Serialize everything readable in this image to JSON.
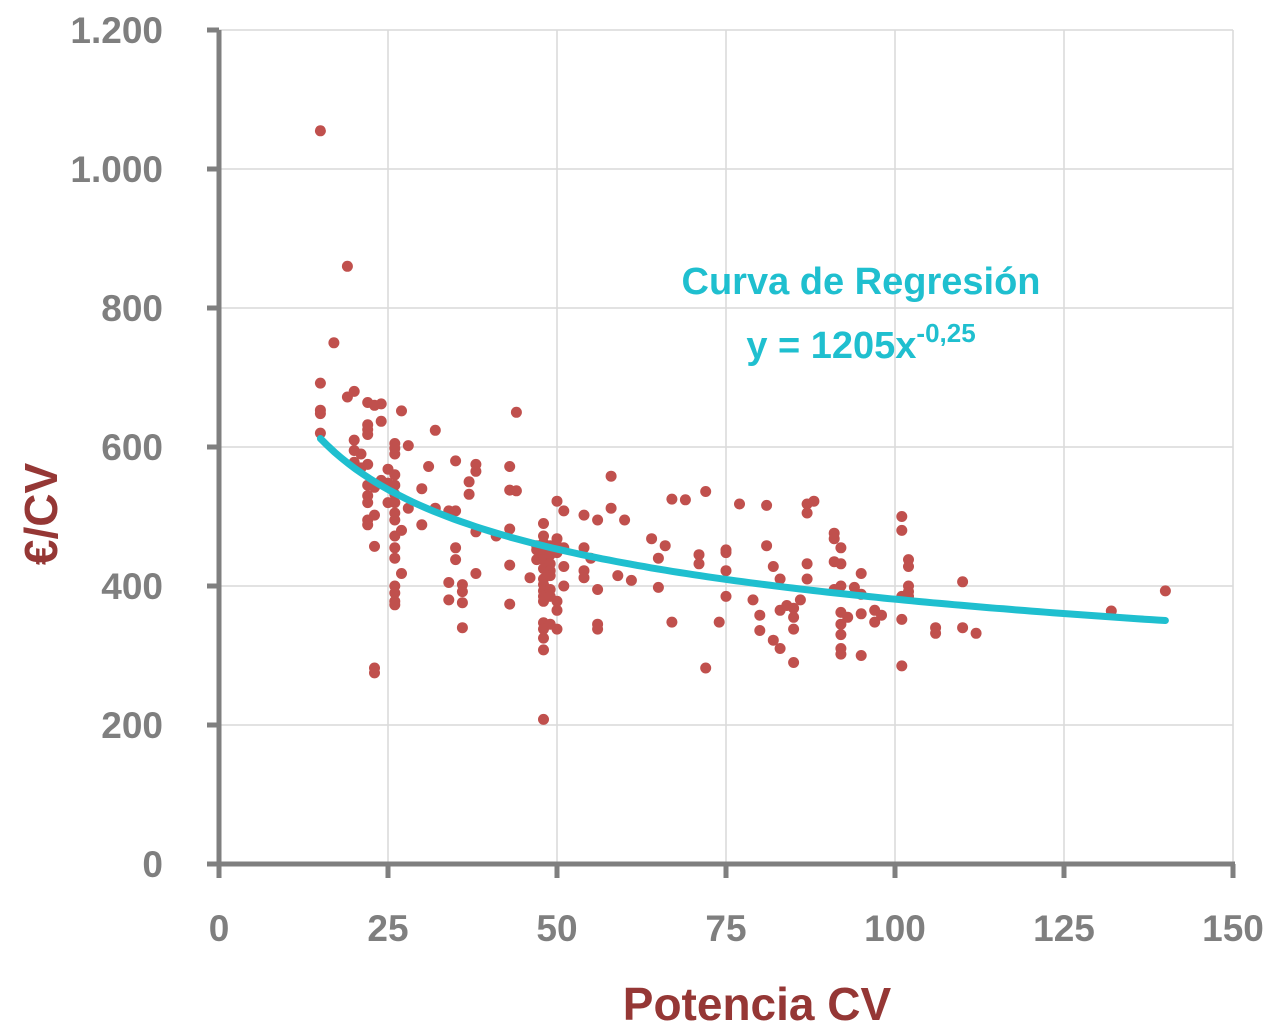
{
  "chart_data": {
    "type": "scatter",
    "xlabel": "Potencia CV",
    "ylabel": "€/CV",
    "xlim": [
      0,
      150
    ],
    "ylim": [
      0,
      1200
    ],
    "x_ticks": [
      0,
      25,
      50,
      75,
      100,
      125,
      150
    ],
    "y_ticks": [
      0,
      200,
      400,
      600,
      800,
      1000,
      1200
    ],
    "x_tick_labels": [
      "0",
      "25",
      "50",
      "75",
      "100",
      "125",
      "150"
    ],
    "y_tick_labels": [
      "0",
      "200",
      "400",
      "600",
      "800",
      "1.000",
      "1.200"
    ],
    "grid": true,
    "colors": {
      "points": "#c0504d",
      "curve": "#1fbfcf",
      "axis_title": "#953735",
      "tick": "#7f7f7f",
      "grid": "#d9d9d9",
      "axis": "#7f7f7f"
    },
    "annotation": {
      "line1": "Curva de Regresión",
      "eq_main": "y = 1205x",
      "eq_exp": "-0,25"
    },
    "regression": {
      "a": 1205,
      "b": -0.25,
      "x_range": [
        15,
        140
      ]
    },
    "points": [
      [
        15,
        1055
      ],
      [
        15,
        692
      ],
      [
        15,
        653
      ],
      [
        15,
        648
      ],
      [
        15,
        620
      ],
      [
        17,
        750
      ],
      [
        19,
        860
      ],
      [
        19,
        672
      ],
      [
        20,
        680
      ],
      [
        20,
        610
      ],
      [
        20,
        595
      ],
      [
        20,
        578
      ],
      [
        21,
        590
      ],
      [
        21,
        570
      ],
      [
        22,
        664
      ],
      [
        22,
        632
      ],
      [
        22,
        625
      ],
      [
        22,
        618
      ],
      [
        22,
        575
      ],
      [
        22,
        545
      ],
      [
        22,
        530
      ],
      [
        22,
        520
      ],
      [
        22,
        495
      ],
      [
        22,
        488
      ],
      [
        23,
        660
      ],
      [
        23,
        542
      ],
      [
        23,
        502
      ],
      [
        23,
        457
      ],
      [
        23,
        282
      ],
      [
        23,
        275
      ],
      [
        24,
        662
      ],
      [
        24,
        637
      ],
      [
        24,
        552
      ],
      [
        25,
        568
      ],
      [
        25,
        548
      ],
      [
        25,
        520
      ],
      [
        26,
        605
      ],
      [
        26,
        598
      ],
      [
        26,
        590
      ],
      [
        26,
        560
      ],
      [
        26,
        545
      ],
      [
        26,
        532
      ],
      [
        26,
        520
      ],
      [
        26,
        505
      ],
      [
        26,
        495
      ],
      [
        26,
        472
      ],
      [
        26,
        455
      ],
      [
        26,
        440
      ],
      [
        26,
        400
      ],
      [
        26,
        390
      ],
      [
        26,
        378
      ],
      [
        26,
        373
      ],
      [
        27,
        652
      ],
      [
        27,
        480
      ],
      [
        27,
        418
      ],
      [
        28,
        602
      ],
      [
        28,
        512
      ],
      [
        30,
        540
      ],
      [
        30,
        488
      ],
      [
        31,
        572
      ],
      [
        32,
        624
      ],
      [
        32,
        512
      ],
      [
        34,
        508
      ],
      [
        34,
        405
      ],
      [
        34,
        380
      ],
      [
        35,
        580
      ],
      [
        35,
        508
      ],
      [
        35,
        455
      ],
      [
        35,
        438
      ],
      [
        36,
        402
      ],
      [
        36,
        392
      ],
      [
        36,
        376
      ],
      [
        36,
        340
      ],
      [
        37,
        550
      ],
      [
        37,
        532
      ],
      [
        38,
        575
      ],
      [
        38,
        565
      ],
      [
        38,
        478
      ],
      [
        38,
        418
      ],
      [
        41,
        472
      ],
      [
        43,
        572
      ],
      [
        43,
        538
      ],
      [
        43,
        482
      ],
      [
        43,
        430
      ],
      [
        43,
        374
      ],
      [
        44,
        650
      ],
      [
        44,
        537
      ],
      [
        46,
        412
      ],
      [
        47,
        458
      ],
      [
        47,
        452
      ],
      [
        47,
        438
      ],
      [
        48,
        490
      ],
      [
        48,
        472
      ],
      [
        48,
        462
      ],
      [
        48,
        448
      ],
      [
        48,
        438
      ],
      [
        48,
        425
      ],
      [
        48,
        410
      ],
      [
        48,
        402
      ],
      [
        48,
        393
      ],
      [
        48,
        385
      ],
      [
        48,
        378
      ],
      [
        48,
        347
      ],
      [
        48,
        338
      ],
      [
        48,
        325
      ],
      [
        48,
        308
      ],
      [
        48,
        208
      ],
      [
        49,
        458
      ],
      [
        49,
        445
      ],
      [
        49,
        432
      ],
      [
        49,
        422
      ],
      [
        49,
        415
      ],
      [
        49,
        395
      ],
      [
        49,
        385
      ],
      [
        49,
        345
      ],
      [
        50,
        522
      ],
      [
        50,
        468
      ],
      [
        50,
        458
      ],
      [
        50,
        448
      ],
      [
        50,
        378
      ],
      [
        50,
        365
      ],
      [
        50,
        338
      ],
      [
        51,
        508
      ],
      [
        51,
        455
      ],
      [
        51,
        428
      ],
      [
        51,
        400
      ],
      [
        54,
        502
      ],
      [
        54,
        455
      ],
      [
        54,
        422
      ],
      [
        54,
        412
      ],
      [
        55,
        440
      ],
      [
        56,
        495
      ],
      [
        56,
        395
      ],
      [
        56,
        345
      ],
      [
        56,
        338
      ],
      [
        58,
        558
      ],
      [
        58,
        512
      ],
      [
        59,
        415
      ],
      [
        60,
        495
      ],
      [
        61,
        408
      ],
      [
        64,
        468
      ],
      [
        65,
        440
      ],
      [
        65,
        398
      ],
      [
        66,
        458
      ],
      [
        67,
        525
      ],
      [
        67,
        348
      ],
      [
        69,
        524
      ],
      [
        71,
        445
      ],
      [
        71,
        432
      ],
      [
        72,
        536
      ],
      [
        72,
        282
      ],
      [
        74,
        348
      ],
      [
        75,
        452
      ],
      [
        75,
        448
      ],
      [
        75,
        422
      ],
      [
        75,
        385
      ],
      [
        77,
        518
      ],
      [
        79,
        380
      ],
      [
        80,
        358
      ],
      [
        80,
        336
      ],
      [
        81,
        516
      ],
      [
        81,
        458
      ],
      [
        82,
        428
      ],
      [
        82,
        322
      ],
      [
        83,
        410
      ],
      [
        83,
        365
      ],
      [
        83,
        310
      ],
      [
        84,
        372
      ],
      [
        85,
        368
      ],
      [
        85,
        355
      ],
      [
        85,
        338
      ],
      [
        85,
        290
      ],
      [
        86,
        380
      ],
      [
        87,
        518
      ],
      [
        87,
        505
      ],
      [
        87,
        432
      ],
      [
        87,
        410
      ],
      [
        88,
        522
      ],
      [
        91,
        476
      ],
      [
        91,
        468
      ],
      [
        91,
        435
      ],
      [
        91,
        395
      ],
      [
        92,
        455
      ],
      [
        92,
        432
      ],
      [
        92,
        400
      ],
      [
        92,
        362
      ],
      [
        92,
        345
      ],
      [
        92,
        330
      ],
      [
        92,
        310
      ],
      [
        92,
        302
      ],
      [
        93,
        355
      ],
      [
        94,
        398
      ],
      [
        95,
        418
      ],
      [
        95,
        388
      ],
      [
        95,
        360
      ],
      [
        95,
        300
      ],
      [
        97,
        365
      ],
      [
        97,
        348
      ],
      [
        98,
        358
      ],
      [
        101,
        500
      ],
      [
        101,
        480
      ],
      [
        101,
        385
      ],
      [
        101,
        352
      ],
      [
        101,
        285
      ],
      [
        102,
        438
      ],
      [
        102,
        428
      ],
      [
        102,
        400
      ],
      [
        102,
        392
      ],
      [
        102,
        385
      ],
      [
        106,
        340
      ],
      [
        106,
        332
      ],
      [
        110,
        406
      ],
      [
        110,
        340
      ],
      [
        112,
        332
      ],
      [
        132,
        364
      ],
      [
        140,
        393
      ]
    ]
  }
}
